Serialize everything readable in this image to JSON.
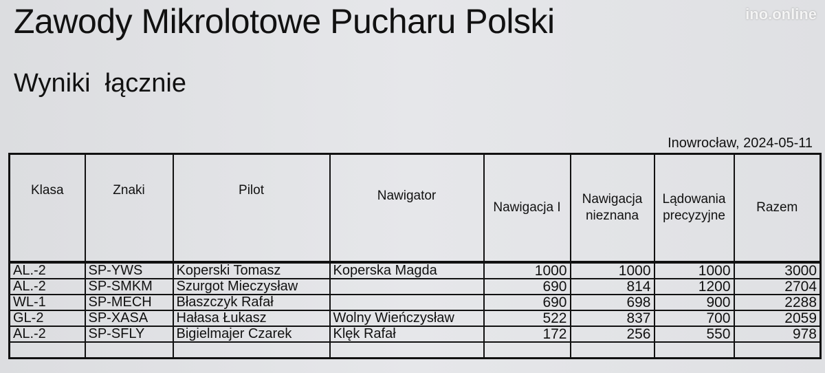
{
  "title": "Zawody Mikrolotowe Pucharu Polski",
  "subtitle": "Wyniki  łącznie",
  "watermark": "ino.online",
  "place_date": "Inowrocław, 2024-05-11",
  "table": {
    "headers": [
      "Klasa",
      "Znaki",
      "Pilot",
      "Nawigator",
      "Nawigacja I",
      "Nawigacja nieznana",
      "Lądowania precyzyjne",
      "Razem"
    ],
    "rows": [
      [
        "AL.-2",
        "SP-YWS",
        "Koperski Tomasz",
        "Koperska Magda",
        "1000",
        "1000",
        "1000",
        "3000"
      ],
      [
        "AL.-2",
        "SP-SMKM",
        "Szurgot Mieczysław",
        "",
        "690",
        "814",
        "1200",
        "2704"
      ],
      [
        "WL-1",
        "SP-MECH",
        "Błaszczyk Rafał",
        "",
        "690",
        "698",
        "900",
        "2288"
      ],
      [
        "GL-2",
        "SP-XASA",
        "Hałasa Łukasz",
        "Wolny Wieńczysław",
        "522",
        "837",
        "700",
        "2059"
      ],
      [
        "AL.-2",
        "SP-SFLY",
        "Bigielmajer Czarek",
        "Klęk Rafał",
        "172",
        "256",
        "550",
        "978"
      ],
      [
        "",
        "",
        "",
        "",
        "",
        "",
        "",
        ""
      ]
    ]
  }
}
